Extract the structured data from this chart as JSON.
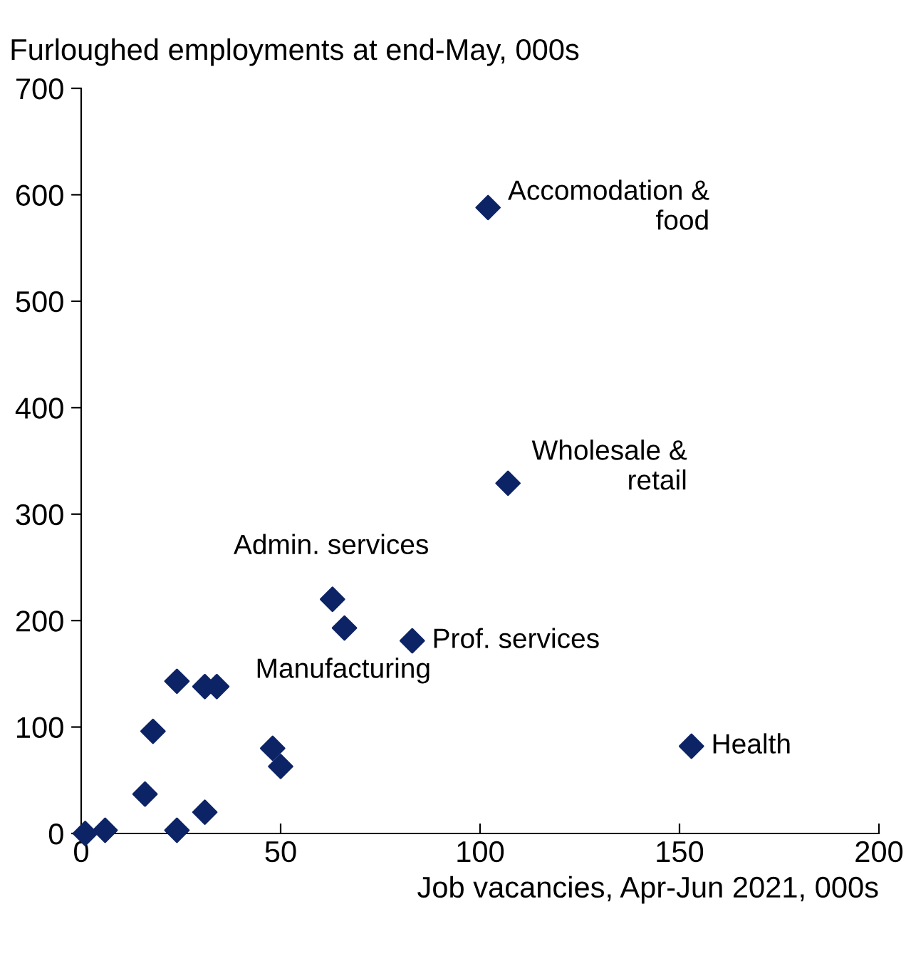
{
  "chart_data": {
    "type": "scatter",
    "ylabel": "Furloughed employments at end-May, 000s",
    "xlabel": "Job vacancies, Apr-Jun 2021, 000s",
    "series": [
      {
        "color": "#0c2366",
        "x": [
          1,
          6,
          16,
          18,
          24,
          24,
          31,
          31,
          34,
          48,
          50,
          63,
          66,
          83,
          102,
          107,
          153
        ],
        "values": [
          0,
          3,
          37,
          96,
          143,
          3,
          20,
          138,
          138,
          80,
          63,
          220,
          193,
          181,
          588,
          329,
          82
        ]
      }
    ],
    "marker": "diamond",
    "xlim": [
      0,
      200
    ],
    "xticks": [
      0,
      50,
      100,
      150,
      200
    ],
    "ylim": [
      0,
      700
    ],
    "yticks": [
      0,
      100,
      200,
      300,
      400,
      500,
      600,
      700
    ],
    "grid": false,
    "legend": false,
    "annotations": [
      {
        "text": "Accomodation &\nfood",
        "x": 102,
        "y": 588
      },
      {
        "text": "Wholesale &\nretail",
        "x": 107,
        "y": 329
      },
      {
        "text": "Admin. services",
        "x": 63,
        "y": 220
      },
      {
        "text": "Manufacturing",
        "x": 66,
        "y": 193
      },
      {
        "text": "Prof. services",
        "x": 83,
        "y": 181
      },
      {
        "text": "Health",
        "x": 153,
        "y": 82
      }
    ]
  }
}
